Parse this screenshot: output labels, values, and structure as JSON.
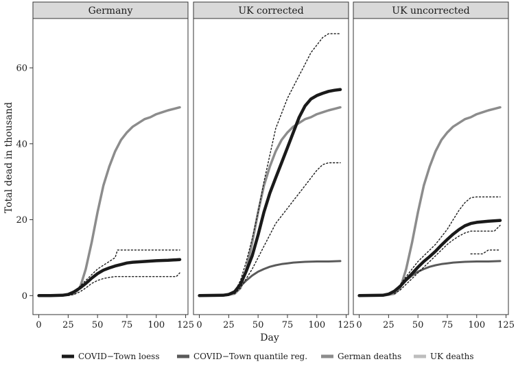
{
  "chart_data": {
    "type": "line",
    "xlabel": "Day",
    "ylabel": "Total dead in thousand",
    "xlim": [
      -5,
      127
    ],
    "ylim": [
      -5,
      73
    ],
    "x_ticks": [
      0,
      25,
      50,
      75,
      100,
      125
    ],
    "y_ticks": [
      0,
      20,
      40,
      60
    ],
    "grid": false,
    "legend_position": "bottom",
    "legend": [
      {
        "name": "COVID−Town loess",
        "color": "#1a1a1a"
      },
      {
        "name": "COVID−Town quantile reg.",
        "color": "#5a5a5a"
      },
      {
        "name": "German deaths",
        "color": "#8c8c8c"
      },
      {
        "name": "UK deaths",
        "color": "#bdbdbd"
      }
    ],
    "panels": [
      {
        "title": "Germany",
        "series": [
          {
            "name": "German deaths",
            "x": [
              0,
              20,
              30,
              35,
              40,
              45,
              50,
              55,
              60,
              65,
              70,
              75,
              80,
              85,
              90,
              95,
              100,
              105,
              110,
              115,
              120
            ],
            "y": [
              0,
              0,
              0.5,
              2,
              7,
              14,
              22,
              29,
              34,
              38,
              41,
              43,
              44.5,
              45.5,
              46.5,
              47,
              47.8,
              48.3,
              48.8,
              49.2,
              49.6
            ]
          },
          {
            "name": "COVID−Town loess",
            "x": [
              0,
              10,
              20,
              25,
              30,
              35,
              40,
              45,
              50,
              55,
              60,
              65,
              70,
              75,
              80,
              90,
              100,
              110,
              120
            ],
            "y": [
              0,
              0,
              0.1,
              0.3,
              1,
              2,
              3.2,
              4.6,
              5.8,
              6.7,
              7.3,
              7.8,
              8.2,
              8.6,
              8.8,
              9,
              9.2,
              9.3,
              9.5
            ]
          },
          {
            "name": "upper band",
            "x": [
              30,
              35,
              40,
              45,
              50,
              55,
              60,
              65,
              67,
              120
            ],
            "y": [
              1,
              2.5,
              4,
              5.5,
              7,
              8,
              9,
              10,
              12,
              12
            ]
          },
          {
            "name": "lower band",
            "x": [
              25,
              30,
              35,
              40,
              45,
              50,
              55,
              60,
              65,
              70,
              75,
              117,
              120
            ],
            "y": [
              0,
              0.3,
              1,
              2,
              3.2,
              4,
              4.5,
              4.8,
              5,
              5,
              5,
              5,
              6
            ]
          }
        ]
      },
      {
        "title": "UK corrected",
        "series": [
          {
            "name": "COVID−Town quantile reg.",
            "x": [
              0,
              10,
              20,
              25,
              30,
              35,
              40,
              45,
              50,
              55,
              60,
              65,
              70,
              75,
              80,
              90,
              100,
              110,
              120
            ],
            "y": [
              0,
              0,
              0.1,
              0.4,
              1.2,
              2.5,
              4,
              5.3,
              6.3,
              7,
              7.6,
              8,
              8.3,
              8.5,
              8.7,
              8.9,
              9,
              9,
              9.1
            ]
          },
          {
            "name": "German deaths",
            "x": [
              0,
              20,
              30,
              35,
              40,
              45,
              50,
              55,
              60,
              65,
              70,
              75,
              80,
              85,
              90,
              95,
              100,
              105,
              110,
              115,
              120
            ],
            "y": [
              0,
              0,
              0.5,
              2,
              7,
              14,
              22,
              29,
              34,
              38,
              41,
              43,
              44.5,
              45.5,
              46.5,
              47,
              47.8,
              48.3,
              48.8,
              49.2,
              49.6
            ]
          },
          {
            "name": "COVID−Town loess",
            "x": [
              0,
              20,
              25,
              30,
              35,
              40,
              45,
              50,
              55,
              60,
              65,
              70,
              75,
              80,
              85,
              90,
              95,
              100,
              105,
              110,
              115,
              120
            ],
            "y": [
              0,
              0.1,
              0.3,
              1,
              3,
              6.5,
              10.5,
              16,
              22,
              27,
              31,
              35,
              39,
              43,
              47,
              50,
              51.8,
              52.7,
              53.3,
              53.8,
              54.1,
              54.3
            ]
          },
          {
            "name": "upper band",
            "x": [
              30,
              35,
              40,
              45,
              50,
              55,
              60,
              65,
              70,
              75,
              80,
              85,
              90,
              95,
              100,
              105,
              110,
              120
            ],
            "y": [
              1,
              4,
              9,
              15,
              22,
              30,
              37,
              44,
              48,
              52,
              55,
              58,
              61,
              64,
              66,
              68,
              69,
              69
            ]
          },
          {
            "name": "lower band",
            "x": [
              30,
              35,
              40,
              45,
              50,
              55,
              60,
              65,
              70,
              75,
              80,
              85,
              90,
              95,
              100,
              105,
              110,
              120
            ],
            "y": [
              0.5,
              2,
              4.5,
              7,
              10,
              13,
              16,
              19,
              21,
              23,
              25,
              27,
              29,
              31,
              33,
              34.5,
              35,
              35
            ]
          }
        ]
      },
      {
        "title": "UK uncorrected",
        "series": [
          {
            "name": "COVID−Town quantile reg.",
            "x": [
              0,
              10,
              20,
              25,
              30,
              35,
              40,
              45,
              50,
              55,
              60,
              65,
              70,
              75,
              80,
              90,
              100,
              110,
              120
            ],
            "y": [
              0,
              0,
              0.1,
              0.4,
              1.2,
              2.5,
              4,
              5.3,
              6.3,
              7,
              7.6,
              8,
              8.3,
              8.5,
              8.7,
              8.9,
              9,
              9,
              9.1
            ]
          },
          {
            "name": "German deaths",
            "x": [
              0,
              20,
              30,
              35,
              40,
              45,
              50,
              55,
              60,
              65,
              70,
              75,
              80,
              85,
              90,
              95,
              100,
              105,
              110,
              115,
              120
            ],
            "y": [
              0,
              0,
              0.5,
              2,
              7,
              14,
              22,
              29,
              34,
              38,
              41,
              43,
              44.5,
              45.5,
              46.5,
              47,
              47.8,
              48.3,
              48.8,
              49.2,
              49.6
            ]
          },
          {
            "name": "COVID−Town loess",
            "x": [
              0,
              20,
              25,
              30,
              35,
              40,
              45,
              50,
              55,
              60,
              65,
              70,
              75,
              80,
              85,
              90,
              95,
              100,
              110,
              120
            ],
            "y": [
              0,
              0.1,
              0.4,
              1.2,
              2.5,
              4.2,
              5.8,
              7.5,
              9,
              10.3,
              11.7,
              13.3,
              14.8,
              16.2,
              17.4,
              18.4,
              19,
              19.3,
              19.6,
              19.8
            ]
          },
          {
            "name": "upper band",
            "x": [
              30,
              35,
              40,
              45,
              50,
              55,
              60,
              65,
              70,
              75,
              80,
              85,
              90,
              95,
              100,
              110,
              120
            ],
            "y": [
              1,
              3,
              5,
              7,
              9,
              10.5,
              12,
              13.5,
              15.5,
              17.5,
              20,
              22.5,
              24.5,
              25.8,
              26,
              26,
              26
            ]
          },
          {
            "name": "lower band",
            "x": [
              30,
              35,
              40,
              45,
              50,
              55,
              60,
              65,
              70,
              75,
              80,
              85,
              90,
              95,
              100,
              105,
              110,
              115,
              120
            ],
            "y": [
              0.5,
              1.5,
              3,
              4.5,
              6,
              7.5,
              9,
              10.5,
              12,
              13.5,
              14.7,
              15.7,
              16.5,
              17,
              17,
              17,
              17,
              17,
              18.5
            ]
          },
          {
            "name": "lower tail",
            "x": [
              95,
              105,
              110,
              120
            ],
            "y": [
              11,
              11,
              12,
              12
            ]
          }
        ]
      }
    ]
  }
}
